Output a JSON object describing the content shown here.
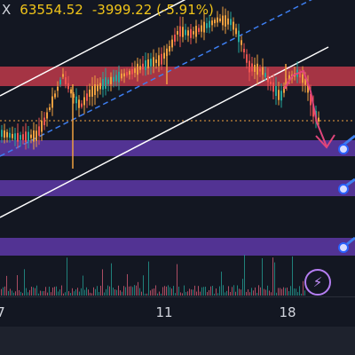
{
  "header": {
    "symbol_fragment": "X",
    "last_price": "63554.52",
    "change": "-3999.22 (-5.91%)"
  },
  "axis": {
    "ticks": [
      "7",
      "11",
      "18"
    ]
  },
  "icons": {
    "alert": "lightning-bolt-icon",
    "arrow": "down-arrow-icon"
  },
  "colors": {
    "background": "#131722",
    "resistance_band": "#c0394a",
    "support_band": "#5a36a0",
    "channel_line": "#ffffff",
    "mid_line": "#3d7ef0",
    "arrow": "#e0457b",
    "bull": "#26a69a",
    "bear": "#ef5350",
    "candle_accent": "#f0a040",
    "header_text": "#f0c419"
  }
}
